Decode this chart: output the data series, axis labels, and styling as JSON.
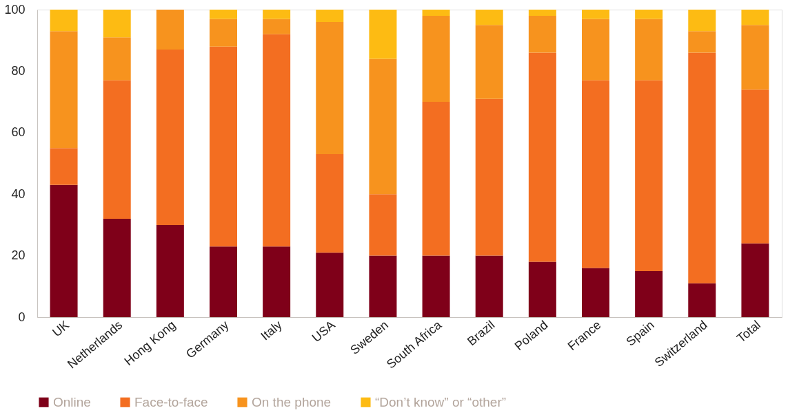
{
  "chart_data": {
    "type": "bar",
    "stacked": true,
    "categories": [
      "UK",
      "Netherlands",
      "Hong Kong",
      "Germany",
      "Italy",
      "USA",
      "Sweden",
      "South Africa",
      "Brazil",
      "Poland",
      "France",
      "Spain",
      "Switzerland",
      "Total"
    ],
    "series": [
      {
        "name": "Online",
        "color": "#7f0019",
        "values": [
          43,
          32,
          30,
          23,
          23,
          21,
          20,
          20,
          20,
          18,
          16,
          15,
          11,
          24
        ]
      },
      {
        "name": "Face-to-face",
        "color": "#f36e21",
        "values": [
          12,
          45,
          57,
          65,
          69,
          32,
          20,
          50,
          51,
          68,
          61,
          62,
          75,
          50
        ]
      },
      {
        "name": "On the phone",
        "color": "#f7931e",
        "values": [
          38,
          14,
          13,
          9,
          5,
          43,
          44,
          28,
          24,
          12,
          20,
          20,
          7,
          21
        ]
      },
      {
        "name": "“Don’t know” or “other”",
        "color": "#fdbb13",
        "values": [
          7,
          9,
          0,
          3,
          3,
          4,
          16,
          2,
          5,
          2,
          3,
          3,
          7,
          5
        ]
      }
    ],
    "ylim": [
      0,
      100
    ],
    "yticks": [
      0,
      20,
      40,
      60,
      80,
      100
    ],
    "grid": false,
    "legend": "bottom left"
  }
}
